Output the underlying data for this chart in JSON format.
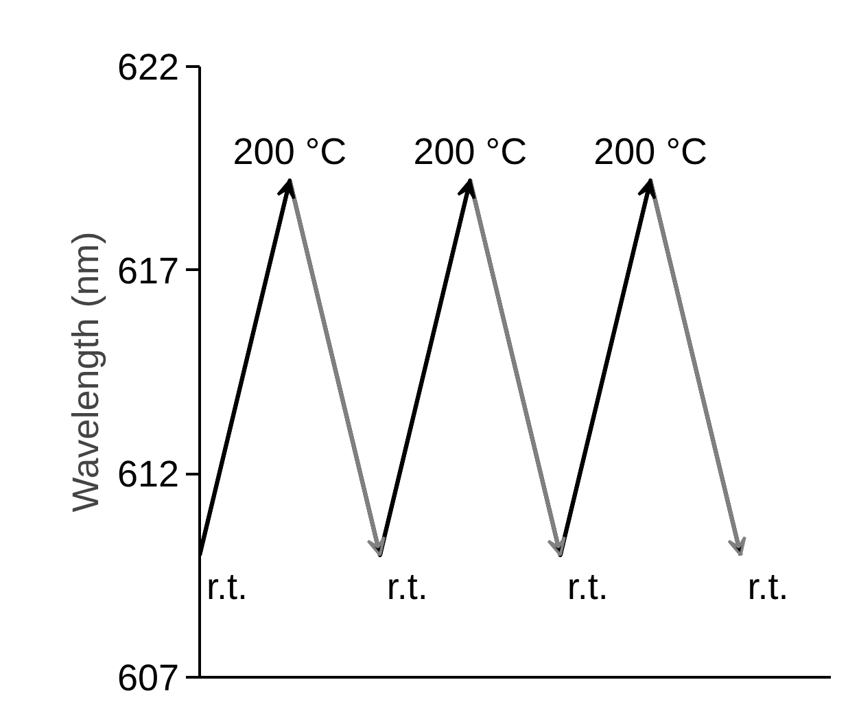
{
  "chart_data": {
    "type": "line",
    "ylabel": "Wavelength (nm)",
    "categories": [
      null,
      null,
      null,
      null,
      null,
      null,
      null
    ],
    "ylim": [
      607,
      622
    ],
    "yticks": [
      607,
      612,
      617,
      622
    ],
    "tick_labels": "y",
    "grid": false,
    "marker": "none",
    "line_style": "solid",
    "series": [
      {
        "color": "#000000",
        "colors": [
          "#000000",
          "#000000",
          "#808080",
          "#000000",
          "#808080",
          "#000000",
          "#808080"
        ],
        "values": [
          610,
          619.2,
          610,
          619.2,
          610,
          619.2,
          610
        ]
      }
    ],
    "annotations": [
      "r.t.",
      "200 °C",
      "r.t.",
      "200 °C",
      "r.t.",
      "200 °C",
      "r.t."
    ]
  }
}
